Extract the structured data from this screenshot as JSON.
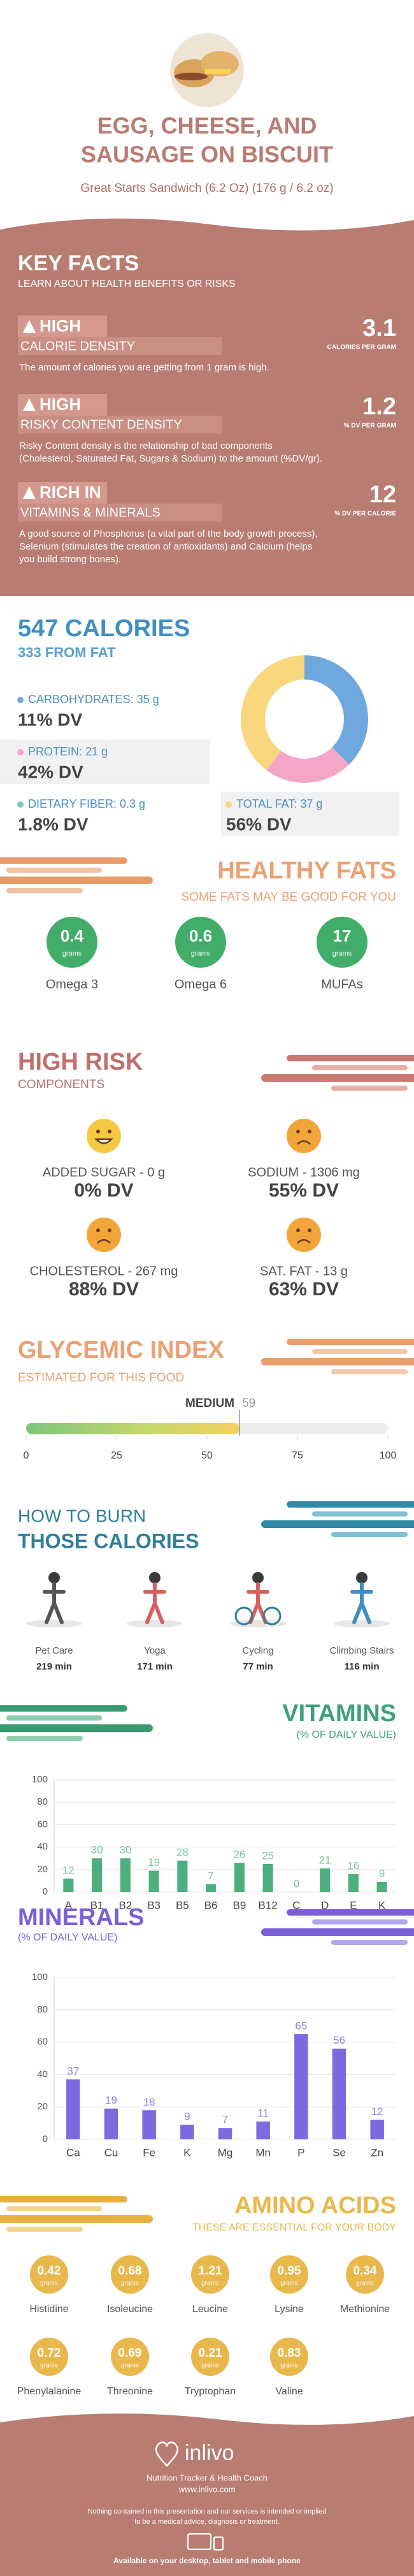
{
  "header": {
    "title": [
      "EGG, CHEESE, AND",
      "SAUSAGE ON BISCUIT"
    ],
    "subtitle": "Great Starts Sandwich (6.2 Oz) (176 g / 6.2 oz)"
  },
  "key_facts": {
    "title": "KEY FACTS",
    "subtitle": "LEARN ABOUT HEALTH BENEFITS OR RISKS",
    "items": [
      {
        "level": "HIGH",
        "name": "CALORIE DENSITY",
        "value": 3.1,
        "unit": "CALORIES PER GRAM",
        "description": [
          "The amount of calories you are getting from 1 gram is high."
        ]
      },
      {
        "level": "HIGH",
        "name": "RISKY CONTENT DENSITY",
        "value": 1.2,
        "unit": "% DV PER GRAM",
        "description": [
          "Risky Content density is the relationship of bad components",
          "(Cholesterol, Saturated Fat, Sugars & Sodium) to the amount (%DV/gr)."
        ]
      },
      {
        "level": "RICH IN",
        "name": "VITAMINS & MINERALS",
        "value": 12,
        "unit": "% DV PER CALORIE",
        "description": [
          "A good source of Phosphorus (a vital part of the body growth process),",
          "Selenium (stimulates the creation of antioxidants) and Calcium (helps",
          "you build strong bones)."
        ]
      }
    ]
  },
  "calories": {
    "title": "547 CALORIES",
    "subtitle": "333 FROM FAT",
    "items": [
      {
        "label": "CARBOHYDRATES: 35 g",
        "dv": "11% DV",
        "color": "#6fa8dc"
      },
      {
        "label": "PROTEIN: 21 g",
        "dv": "42% DV",
        "color": "#f4a6c8"
      },
      {
        "label": "DIETARY FIBER: 0.3 g",
        "dv": "1.8% DV",
        "color": "#7fc9b0"
      },
      {
        "label": "TOTAL FAT: 37 g",
        "dv": "56% DV",
        "color": "#f9d77e"
      }
    ]
  },
  "healthy_fats": {
    "title": "HEALTHY FATS",
    "subtitle": "SOME FATS MAY BE GOOD FOR YOU",
    "unit": "grams",
    "items": [
      {
        "value": 0.4,
        "name": "Omega 3"
      },
      {
        "value": 0.6,
        "name": "Omega 6"
      },
      {
        "value": 17,
        "name": "MUFAs"
      }
    ]
  },
  "high_risk": {
    "title": "HIGH RISK",
    "subtitle": "COMPONENTS",
    "items": [
      {
        "label": "ADDED SUGAR - 0 g",
        "dv": "0% DV",
        "face": "happy"
      },
      {
        "label": "SODIUM - 1306 mg",
        "dv": "55% DV",
        "face": "sad"
      },
      {
        "label": "CHOLESTEROL - 267 mg",
        "dv": "88% DV",
        "face": "sad"
      },
      {
        "label": "SAT. FAT - 13 g",
        "dv": "63% DV",
        "face": "sad"
      }
    ]
  },
  "glycemic_index": {
    "title": "GLYCEMIC INDEX",
    "subtitle": "ESTIMATED FOR THIS FOOD",
    "level": "MEDIUM",
    "value": 59,
    "xlim": [
      0,
      100
    ],
    "xticks": [
      0,
      25,
      50,
      75,
      100
    ]
  },
  "burn": {
    "title": [
      "HOW TO BURN",
      "THOSE CALORIES"
    ],
    "items": [
      {
        "activity": "Pet Care",
        "time": "219 min"
      },
      {
        "activity": "Yoga",
        "time": "171 min"
      },
      {
        "activity": "Cycling",
        "time": "77 min"
      },
      {
        "activity": "Climbing Stairs",
        "time": "116 min"
      }
    ]
  },
  "chart_data": [
    {
      "type": "pie",
      "values": [
        35,
        21,
        37
      ],
      "colors": [
        "#6fa8dc",
        "#f4a6c8",
        "#f9d77e"
      ]
    },
    {
      "type": "bar",
      "title": "VITAMINS",
      "subtitle": "(% OF DAILY VALUE)",
      "categories": [
        "A",
        "B1",
        "B2",
        "B3",
        "B5",
        "B6",
        "B9",
        "B12",
        "C",
        "D",
        "E",
        "K"
      ],
      "values": [
        12,
        30,
        30,
        19,
        28,
        7,
        26,
        25,
        0,
        21,
        16,
        9
      ],
      "color": "#4caf7d",
      "label_color": "#7cc49c",
      "ylim": [
        0,
        100
      ],
      "yticks": [
        0,
        20,
        40,
        60,
        80,
        100
      ]
    },
    {
      "type": "bar",
      "title": "MINERALS",
      "subtitle": "(% OF DAILY VALUE)",
      "categories": [
        "Ca",
        "Cu",
        "Fe",
        "K",
        "Mg",
        "Mn",
        "P",
        "Se",
        "Zn"
      ],
      "values": [
        37,
        19,
        18,
        9,
        7,
        11,
        65,
        56,
        12
      ],
      "color": "#7b6ae0",
      "label_color": "#8f82e6",
      "ylim": [
        0,
        100
      ],
      "yticks": [
        0,
        20,
        40,
        60,
        80,
        100
      ]
    }
  ],
  "amino_acids": {
    "title": "AMINO ACIDS",
    "subtitle": "THESE ARE ESSENTIAL FOR YOUR BODY",
    "unit": "grams",
    "items": [
      {
        "name": "Histidine",
        "value": 0.42
      },
      {
        "name": "Isoleucine",
        "value": 0.68
      },
      {
        "name": "Leucine",
        "value": 1.21
      },
      {
        "name": "Lysine",
        "value": 0.95
      },
      {
        "name": "Methionine",
        "value": 0.34
      },
      {
        "name": "Phenylalanine",
        "value": 0.72
      },
      {
        "name": "Threonine",
        "value": 0.69
      },
      {
        "name": "Tryptophan",
        "value": 0.21
      },
      {
        "name": "Valine",
        "value": 0.83
      }
    ]
  },
  "footer": {
    "brand": "inlivo",
    "tagline": "Nutrition Tracker & Health Coach",
    "url": "www.inlivo.com",
    "disclaimer": [
      "Nothing contained in this presentation and our services is intended or implied",
      "to be a medical advice, diagnosis or treatment."
    ],
    "available": "Available on your desktop, tablet and mobile phone"
  }
}
